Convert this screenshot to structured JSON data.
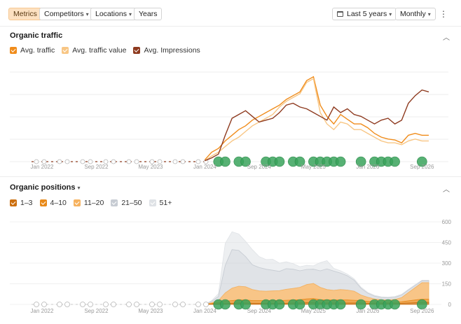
{
  "toolbar": {
    "metrics_label": "Metrics",
    "competitors_label": "Competitors",
    "locations_label": "Locations",
    "years_label": "Years",
    "date_range_label": "Last 5 years",
    "interval_label": "Monthly",
    "calendar_icon": "calendar-icon",
    "more_icon": "kebab-icon"
  },
  "traffic": {
    "title": "Organic traffic",
    "legend": [
      {
        "label": "Avg. traffic",
        "color": "#f08c1b"
      },
      {
        "label": "Avg. traffic value",
        "color": "#f8c684"
      },
      {
        "label": "Avg. Impressions",
        "color": "#8e3a1f"
      }
    ]
  },
  "positions": {
    "title": "Organic positions",
    "legend": [
      {
        "label": "1–3",
        "color": "#cc6f0e"
      },
      {
        "label": "4–10",
        "color": "#e88a1a"
      },
      {
        "label": "11–20",
        "color": "#f6b25f"
      },
      {
        "label": "21–50",
        "color": "#c7ccd3"
      },
      {
        "label": "51+",
        "color": "#dfe2e6"
      }
    ],
    "y_ticks": [
      "600",
      "450",
      "300",
      "150",
      "0"
    ]
  },
  "x_ticks": [
    "Jan 2022",
    "Sep 2022",
    "May 2023",
    "Jan 2024",
    "Sep 2024",
    "May 2025",
    "Jan 2026",
    "Sep 2026"
  ],
  "chart_data": [
    {
      "type": "line",
      "title": "Organic traffic",
      "x": [
        "2024-01",
        "2024-02",
        "2024-03",
        "2024-04",
        "2024-05",
        "2024-06",
        "2024-07",
        "2024-08",
        "2024-09",
        "2024-10",
        "2024-11",
        "2024-12",
        "2025-01",
        "2025-02",
        "2025-03",
        "2025-04",
        "2025-05",
        "2025-06",
        "2025-07",
        "2025-08",
        "2025-09",
        "2025-10",
        "2025-11",
        "2025-12",
        "2026-01",
        "2026-02",
        "2026-03",
        "2026-04",
        "2026-05",
        "2026-06",
        "2026-07",
        "2026-08",
        "2026-09",
        "2026-10"
      ],
      "series": [
        {
          "name": "Avg. traffic",
          "color": "#f08c1b",
          "values": [
            2,
            10,
            14,
            22,
            28,
            34,
            38,
            44,
            48,
            52,
            56,
            60,
            66,
            70,
            74,
            86,
            90,
            60,
            48,
            40,
            50,
            45,
            40,
            40,
            36,
            30,
            26,
            24,
            23,
            20,
            28,
            30,
            28,
            28
          ]
        },
        {
          "name": "Avg. traffic value",
          "color": "#f8c684",
          "values": [
            1,
            6,
            10,
            16,
            22,
            26,
            32,
            38,
            42,
            46,
            50,
            58,
            64,
            68,
            72,
            84,
            88,
            52,
            40,
            34,
            42,
            40,
            34,
            34,
            30,
            26,
            22,
            20,
            20,
            18,
            22,
            24,
            22,
            22
          ]
        },
        {
          "name": "Avg. Impressions",
          "color": "#8e3a1f",
          "values": [
            1,
            4,
            8,
            28,
            46,
            50,
            54,
            48,
            42,
            44,
            46,
            52,
            60,
            62,
            58,
            56,
            52,
            48,
            44,
            58,
            52,
            56,
            50,
            48,
            44,
            40,
            44,
            46,
            40,
            44,
            62,
            70,
            76,
            74
          ]
        }
      ],
      "bubbles": [
        {
          "x": "2024-03",
          "marker": "G"
        },
        {
          "x": "2024-04",
          "marker": "G"
        },
        {
          "x": "2024-06",
          "marker": "G"
        },
        {
          "x": "2024-07",
          "marker": "G"
        },
        {
          "x": "2024-10",
          "marker": "G"
        },
        {
          "x": "2024-11",
          "marker": "G"
        },
        {
          "x": "2024-12",
          "marker": "G"
        },
        {
          "x": "2025-02",
          "marker": "G"
        },
        {
          "x": "2025-03",
          "marker": "G"
        },
        {
          "x": "2025-05",
          "marker": "G"
        },
        {
          "x": "2025-06",
          "marker": "G"
        },
        {
          "x": "2025-07",
          "marker": "G"
        },
        {
          "x": "2025-08",
          "marker": "G"
        },
        {
          "x": "2025-09",
          "marker": "G"
        },
        {
          "x": "2025-12",
          "marker": "G"
        },
        {
          "x": "2026-02",
          "marker": "G"
        },
        {
          "x": "2026-03",
          "marker": "G"
        },
        {
          "x": "2026-04",
          "marker": "G"
        },
        {
          "x": "2026-05",
          "marker": "G"
        },
        {
          "x": "2026-09",
          "marker": "G"
        }
      ]
    },
    {
      "type": "area",
      "title": "Organic positions",
      "ylim": [
        0,
        600
      ],
      "x": [
        "2024-01",
        "2024-02",
        "2024-03",
        "2024-04",
        "2024-05",
        "2024-06",
        "2024-07",
        "2024-08",
        "2024-09",
        "2024-10",
        "2024-11",
        "2024-12",
        "2025-01",
        "2025-02",
        "2025-03",
        "2025-04",
        "2025-05",
        "2025-06",
        "2025-07",
        "2025-08",
        "2025-09",
        "2025-10",
        "2025-11",
        "2025-12",
        "2026-01",
        "2026-02",
        "2026-03",
        "2026-04",
        "2026-05",
        "2026-06",
        "2026-07",
        "2026-08",
        "2026-09",
        "2026-10"
      ],
      "series": [
        {
          "name": "1–3",
          "color": "#cc6f0e",
          "values": [
            0,
            2,
            4,
            6,
            8,
            10,
            10,
            8,
            8,
            8,
            8,
            8,
            8,
            10,
            10,
            12,
            12,
            10,
            10,
            10,
            10,
            10,
            10,
            10,
            8,
            8,
            8,
            8,
            8,
            8,
            10,
            12,
            14,
            14
          ]
        },
        {
          "name": "4–10",
          "color": "#e88a1a",
          "values": [
            0,
            4,
            10,
            18,
            20,
            22,
            22,
            20,
            20,
            20,
            20,
            20,
            22,
            22,
            24,
            28,
            30,
            24,
            22,
            22,
            22,
            22,
            20,
            18,
            14,
            12,
            10,
            10,
            10,
            12,
            16,
            20,
            24,
            24
          ]
        },
        {
          "name": "11–20",
          "color": "#f6b25f",
          "values": [
            0,
            6,
            14,
            60,
            90,
            100,
            96,
            80,
            70,
            68,
            70,
            72,
            80,
            84,
            90,
            104,
            110,
            90,
            76,
            70,
            76,
            72,
            66,
            40,
            30,
            20,
            16,
            14,
            18,
            30,
            60,
            90,
            120,
            120
          ]
        },
        {
          "name": "21–50",
          "color": "#c7ccd3",
          "values": [
            0,
            10,
            30,
            200,
            280,
            260,
            220,
            180,
            170,
            160,
            150,
            140,
            150,
            140,
            120,
            110,
            104,
            120,
            150,
            140,
            120,
            104,
            80,
            50,
            30,
            20,
            16,
            16,
            16,
            18,
            18,
            16,
            14,
            14
          ]
        },
        {
          "name": "51+",
          "color": "#dfe2e6",
          "values": [
            0,
            6,
            20,
            160,
            130,
            120,
            110,
            110,
            80,
            70,
            80,
            60,
            50,
            40,
            30,
            30,
            24,
            60,
            60,
            20,
            16,
            12,
            10,
            8,
            6,
            6,
            6,
            6,
            6,
            6,
            6,
            6,
            4,
            4
          ]
        }
      ]
    }
  ]
}
